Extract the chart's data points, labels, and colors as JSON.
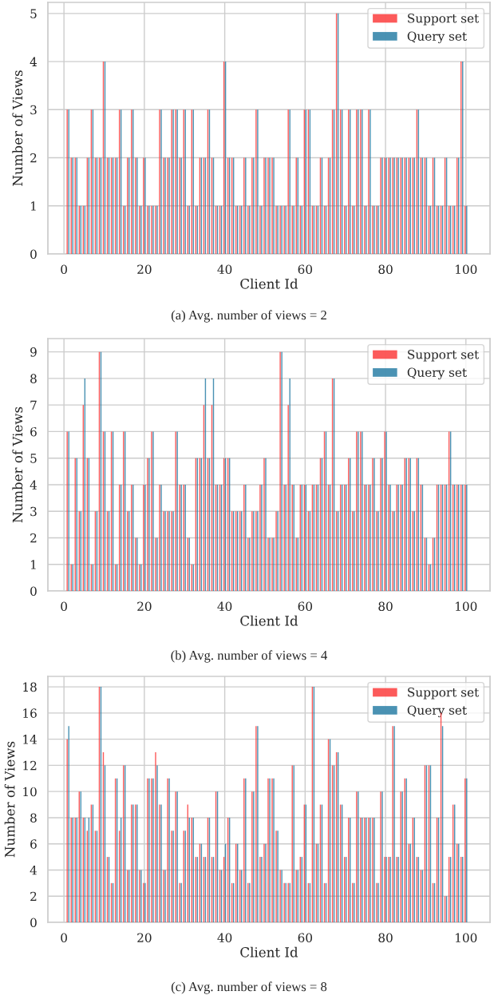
{
  "chart_data": [
    {
      "type": "bar",
      "xlabel": "Client Id",
      "ylabel": "Number of Views",
      "annotations": [
        "(a) Avg. number of views = 2"
      ],
      "x": [
        1,
        2,
        3,
        4,
        5,
        6,
        7,
        8,
        9,
        10,
        11,
        12,
        13,
        14,
        15,
        16,
        17,
        18,
        19,
        20,
        21,
        22,
        23,
        24,
        25,
        26,
        27,
        28,
        29,
        30,
        31,
        32,
        33,
        34,
        35,
        36,
        37,
        38,
        39,
        40,
        41,
        42,
        43,
        44,
        45,
        46,
        47,
        48,
        49,
        50,
        51,
        52,
        53,
        54,
        55,
        56,
        57,
        58,
        59,
        60,
        61,
        62,
        63,
        64,
        65,
        66,
        67,
        68,
        69,
        70,
        71,
        72,
        73,
        74,
        75,
        76,
        77,
        78,
        79,
        80,
        81,
        82,
        83,
        84,
        85,
        86,
        87,
        88,
        89,
        90,
        91,
        92,
        93,
        94,
        95,
        96,
        97,
        98,
        99,
        100
      ],
      "xlim": [
        -4,
        106
      ],
      "xticks": [
        0,
        20,
        40,
        60,
        80,
        100
      ],
      "ylim": [
        0,
        5.23
      ],
      "yticks": [
        0,
        1,
        2,
        3,
        4,
        5
      ],
      "grid": true,
      "legend": "top right",
      "series": [
        {
          "name": "Support set",
          "color": "#fc3d3d",
          "values": [
            3,
            2,
            2,
            1,
            1,
            2,
            3,
            2,
            2,
            4,
            2,
            2,
            2,
            3,
            1,
            2,
            3,
            2,
            1,
            2,
            1,
            1,
            1,
            3,
            2,
            2,
            3,
            3,
            2,
            3,
            1,
            3,
            1,
            2,
            2,
            3,
            2,
            1,
            1,
            4,
            2,
            2,
            1,
            1,
            2,
            1,
            2,
            3,
            1,
            2,
            2,
            2,
            1,
            1,
            1,
            3,
            1,
            2,
            1,
            3,
            3,
            1,
            1,
            2,
            1,
            2,
            3,
            5,
            3,
            1,
            3,
            1,
            3,
            3,
            1,
            3,
            1,
            1,
            2,
            2,
            2,
            2,
            2,
            2,
            2,
            2,
            2,
            3,
            2,
            2,
            1,
            2,
            1,
            1,
            2,
            1,
            1,
            2,
            4,
            1
          ]
        },
        {
          "name": "Query set",
          "color": "#2a7fa6",
          "values": [
            3,
            2,
            2,
            1,
            1,
            2,
            3,
            2,
            2,
            4,
            2,
            2,
            2,
            3,
            1,
            2,
            3,
            2,
            1,
            2,
            1,
            1,
            1,
            3,
            2,
            2,
            3,
            3,
            2,
            3,
            1,
            3,
            1,
            2,
            2,
            3,
            2,
            1,
            1,
            4,
            2,
            2,
            1,
            1,
            2,
            1,
            2,
            3,
            1,
            2,
            2,
            2,
            1,
            1,
            1,
            3,
            1,
            2,
            1,
            3,
            3,
            1,
            1,
            2,
            1,
            2,
            3,
            5,
            3,
            1,
            3,
            1,
            3,
            3,
            1,
            3,
            1,
            1,
            2,
            2,
            2,
            2,
            2,
            2,
            2,
            2,
            2,
            3,
            2,
            2,
            1,
            2,
            1,
            1,
            2,
            1,
            1,
            2,
            4,
            1
          ]
        }
      ]
    },
    {
      "type": "bar",
      "xlabel": "Client Id",
      "ylabel": "Number of Views",
      "annotations": [
        "(b) Avg. number of views = 4"
      ],
      "x": [
        1,
        2,
        3,
        4,
        5,
        6,
        7,
        8,
        9,
        10,
        11,
        12,
        13,
        14,
        15,
        16,
        17,
        18,
        19,
        20,
        21,
        22,
        23,
        24,
        25,
        26,
        27,
        28,
        29,
        30,
        31,
        32,
        33,
        34,
        35,
        36,
        37,
        38,
        39,
        40,
        41,
        42,
        43,
        44,
        45,
        46,
        47,
        48,
        49,
        50,
        51,
        52,
        53,
        54,
        55,
        56,
        57,
        58,
        59,
        60,
        61,
        62,
        63,
        64,
        65,
        66,
        67,
        68,
        69,
        70,
        71,
        72,
        73,
        74,
        75,
        76,
        77,
        78,
        79,
        80,
        81,
        82,
        83,
        84,
        85,
        86,
        87,
        88,
        89,
        90,
        91,
        92,
        93,
        94,
        95,
        96,
        97,
        98,
        99,
        100
      ],
      "xlim": [
        -4,
        106
      ],
      "xticks": [
        0,
        20,
        40,
        60,
        80,
        100
      ],
      "ylim": [
        0,
        9.5
      ],
      "yticks": [
        0,
        1,
        2,
        3,
        4,
        5,
        6,
        7,
        8,
        9
      ],
      "grid": true,
      "legend": "top right",
      "series": [
        {
          "name": "Support set",
          "color": "#fc3d3d",
          "values": [
            6,
            1,
            5,
            3,
            7,
            5,
            1,
            3,
            9,
            6,
            3,
            6,
            1,
            4,
            6,
            3,
            4,
            2,
            1,
            4,
            5,
            6,
            2,
            4,
            3,
            3,
            3,
            6,
            4,
            4,
            2,
            1,
            5,
            5,
            7,
            5,
            7,
            4,
            4,
            5,
            5,
            3,
            3,
            3,
            4,
            2,
            3,
            3,
            4,
            5,
            2,
            2,
            3,
            9,
            4,
            7,
            4,
            2,
            4,
            4,
            3,
            4,
            4,
            5,
            6,
            4,
            8,
            3,
            4,
            4,
            5,
            3,
            6,
            6,
            4,
            4,
            5,
            3,
            5,
            6,
            4,
            3,
            4,
            4,
            5,
            5,
            3,
            5,
            4,
            2,
            1,
            2,
            4,
            4,
            4,
            6,
            4,
            4,
            4,
            4
          ]
        },
        {
          "name": "Query set",
          "color": "#2a7fa6",
          "values": [
            6,
            1,
            5,
            3,
            8,
            5,
            1,
            3,
            9,
            6,
            3,
            6,
            1,
            4,
            6,
            3,
            4,
            2,
            1,
            4,
            5,
            6,
            2,
            4,
            3,
            3,
            3,
            6,
            4,
            4,
            2,
            1,
            5,
            5,
            8,
            5,
            8,
            4,
            4,
            5,
            5,
            3,
            3,
            3,
            4,
            2,
            3,
            3,
            4,
            5,
            2,
            2,
            3,
            9,
            4,
            8,
            4,
            2,
            4,
            4,
            3,
            4,
            4,
            5,
            6,
            4,
            8,
            3,
            4,
            4,
            5,
            3,
            6,
            6,
            4,
            4,
            5,
            3,
            5,
            6,
            4,
            3,
            4,
            4,
            5,
            5,
            3,
            5,
            4,
            2,
            1,
            2,
            4,
            4,
            4,
            6,
            4,
            4,
            4,
            4
          ]
        }
      ]
    },
    {
      "type": "bar",
      "xlabel": "Client Id",
      "ylabel": "Number of Views",
      "annotations": [
        "(c) Avg. number of views = 8"
      ],
      "x": [
        1,
        2,
        3,
        4,
        5,
        6,
        7,
        8,
        9,
        10,
        11,
        12,
        13,
        14,
        15,
        16,
        17,
        18,
        19,
        20,
        21,
        22,
        23,
        24,
        25,
        26,
        27,
        28,
        29,
        30,
        31,
        32,
        33,
        34,
        35,
        36,
        37,
        38,
        39,
        40,
        41,
        42,
        43,
        44,
        45,
        46,
        47,
        48,
        49,
        50,
        51,
        52,
        53,
        54,
        55,
        56,
        57,
        58,
        59,
        60,
        61,
        62,
        63,
        64,
        65,
        66,
        67,
        68,
        69,
        70,
        71,
        72,
        73,
        74,
        75,
        76,
        77,
        78,
        79,
        80,
        81,
        82,
        83,
        84,
        85,
        86,
        87,
        88,
        89,
        90,
        91,
        92,
        93,
        94,
        95,
        96,
        97,
        98,
        99,
        100
      ],
      "xlim": [
        -4,
        106
      ],
      "xticks": [
        0,
        20,
        40,
        60,
        80,
        100
      ],
      "ylim": [
        0,
        18.8
      ],
      "yticks": [
        0,
        2,
        4,
        6,
        8,
        10,
        12,
        14,
        16,
        18
      ],
      "grid": true,
      "legend": "top right",
      "series": [
        {
          "name": "Support set",
          "color": "#fc3d3d",
          "values": [
            14,
            8,
            8,
            10,
            8,
            7,
            9,
            7,
            18,
            13,
            5,
            3,
            11,
            7,
            12,
            4,
            9,
            9,
            4,
            3,
            11,
            11,
            13,
            9,
            4,
            11,
            7,
            10,
            3,
            7,
            9,
            8,
            5,
            6,
            5,
            8,
            5,
            10,
            4,
            5,
            8,
            3,
            6,
            4,
            11,
            3,
            10,
            15,
            5,
            6,
            11,
            11,
            7,
            4,
            3,
            3,
            12,
            4,
            5,
            9,
            3,
            18,
            6,
            9,
            3,
            14,
            12,
            13,
            9,
            5,
            8,
            3,
            10,
            8,
            8,
            8,
            8,
            3,
            10,
            5,
            5,
            15,
            5,
            10,
            11,
            6,
            8,
            5,
            4,
            12,
            12,
            3,
            8,
            16,
            2,
            5,
            9,
            6,
            5,
            11
          ]
        },
        {
          "name": "Query set",
          "color": "#2a7fa6",
          "values": [
            15,
            8,
            8,
            10,
            8,
            8,
            9,
            7,
            18,
            12,
            5,
            3,
            11,
            8,
            12,
            4,
            9,
            9,
            4,
            3,
            11,
            11,
            12,
            9,
            4,
            11,
            7,
            10,
            3,
            7,
            8,
            8,
            5,
            6,
            5,
            8,
            5,
            10,
            4,
            6,
            8,
            3,
            6,
            4,
            11,
            3,
            10,
            15,
            5,
            6,
            11,
            11,
            7,
            4,
            3,
            3,
            12,
            4,
            5,
            9,
            3,
            18,
            6,
            9,
            3,
            14,
            12,
            13,
            9,
            5,
            8,
            3,
            10,
            8,
            8,
            8,
            8,
            3,
            10,
            5,
            5,
            15,
            5,
            10,
            11,
            6,
            8,
            5,
            4,
            12,
            12,
            3,
            8,
            15,
            2,
            5,
            9,
            6,
            5,
            11
          ]
        }
      ]
    }
  ]
}
